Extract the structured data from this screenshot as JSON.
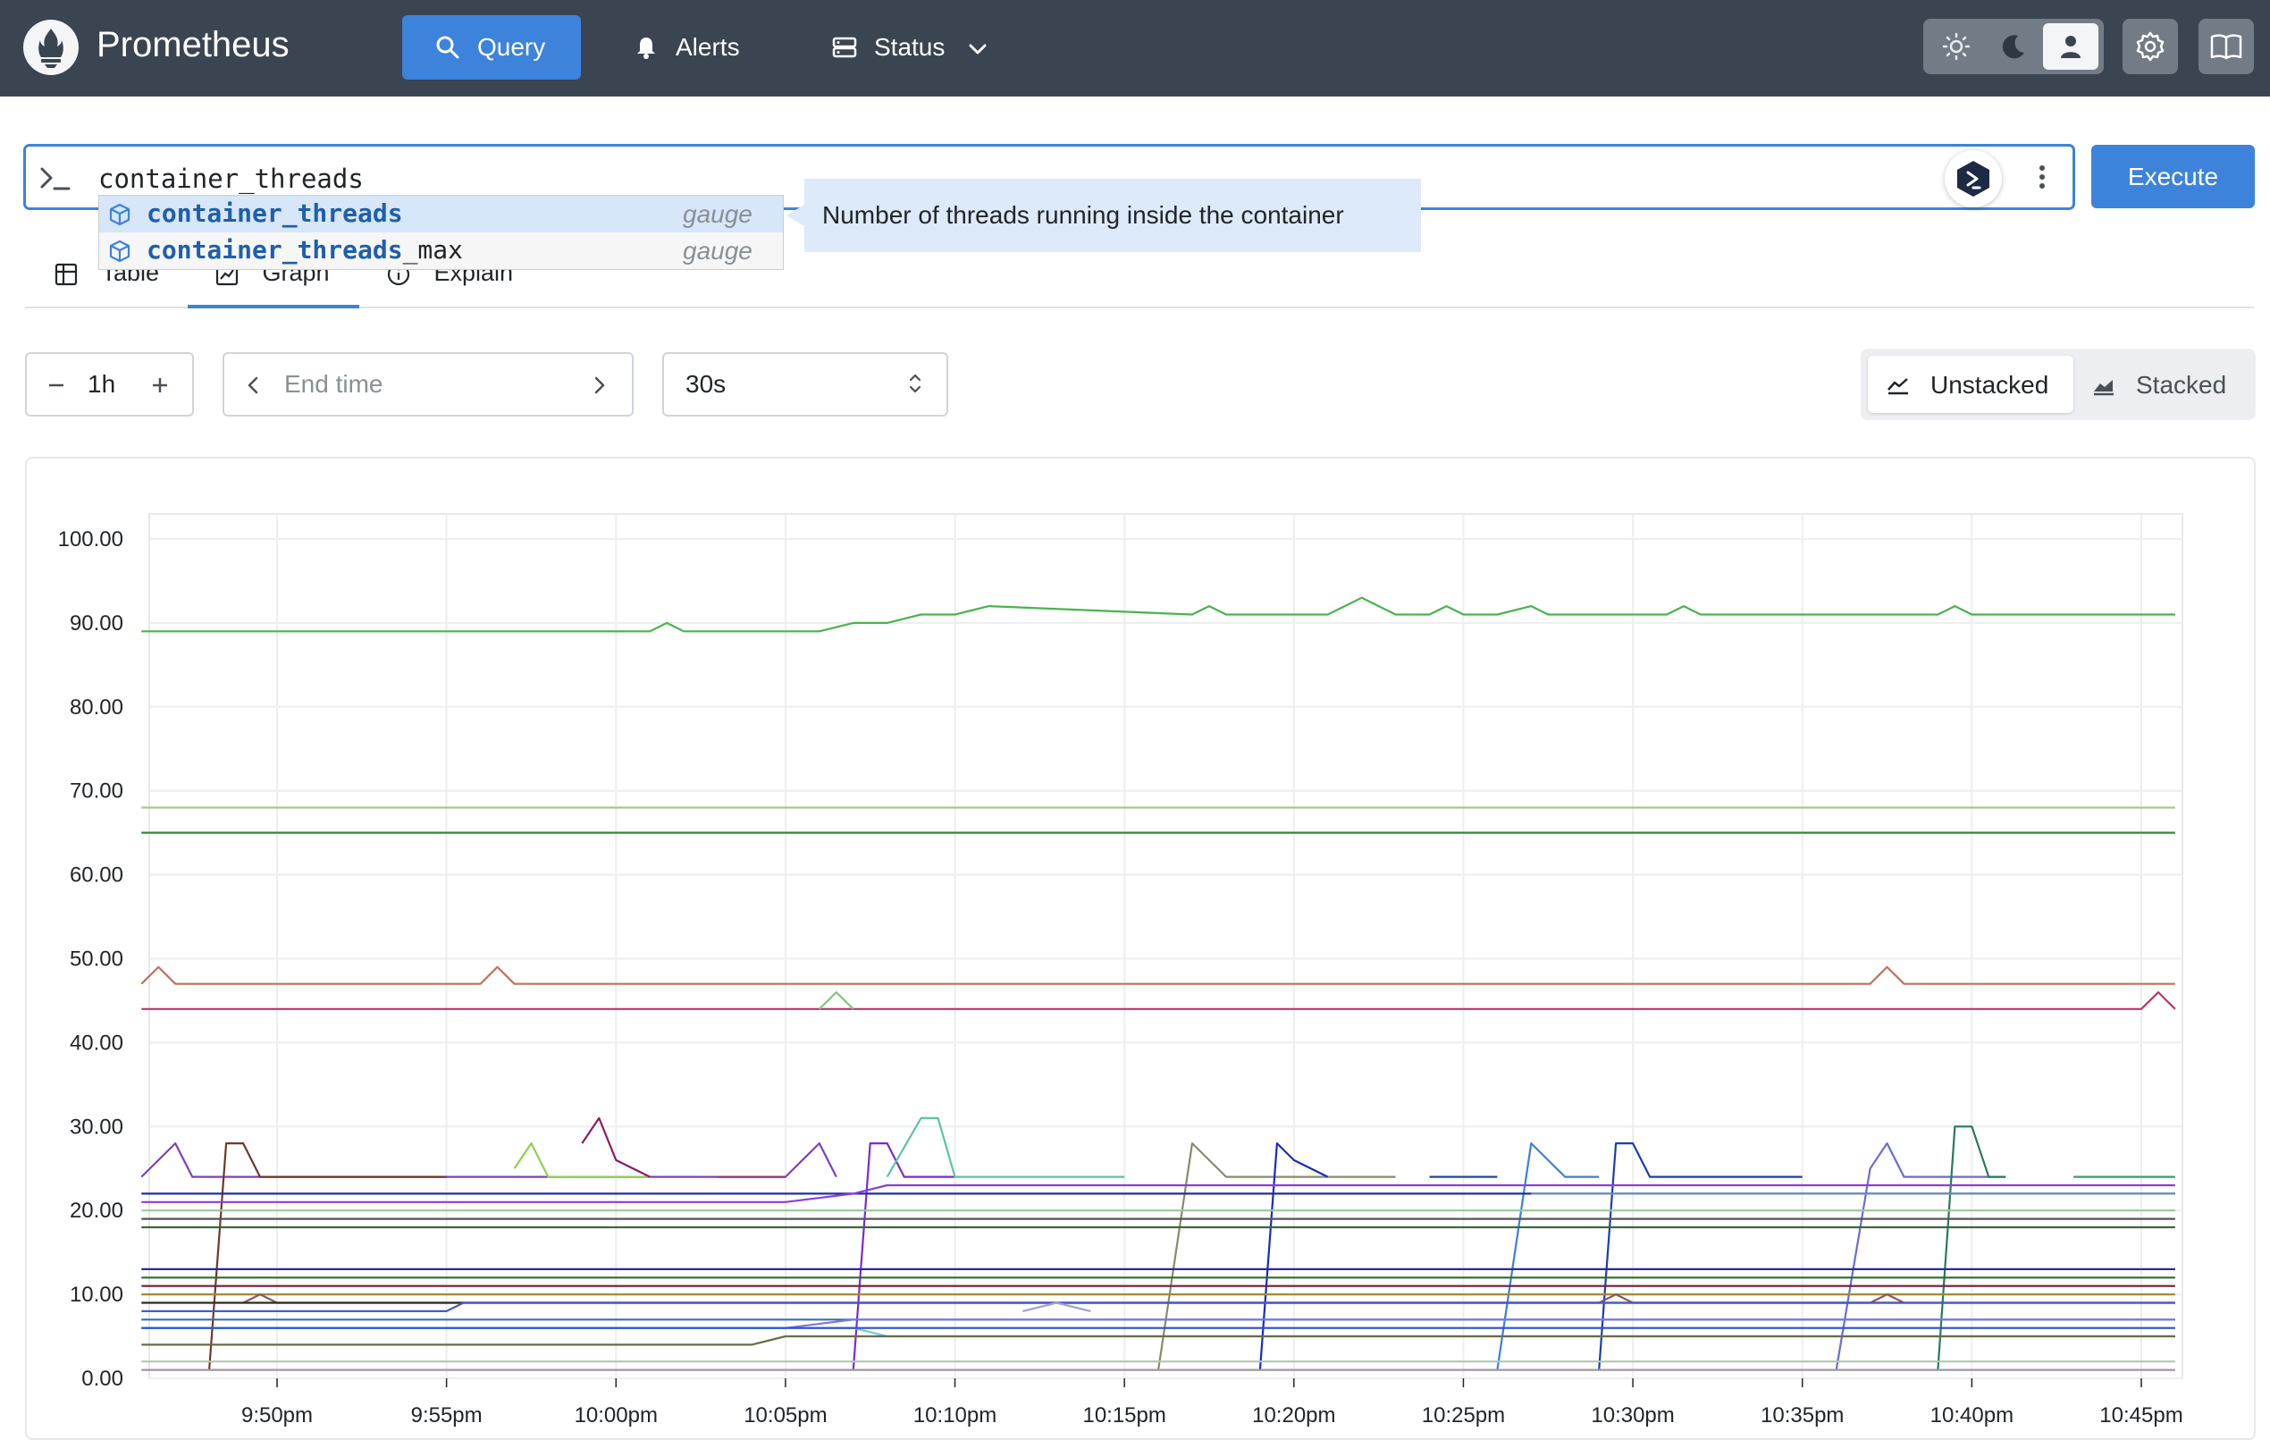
{
  "header": {
    "brand": "Prometheus",
    "nav": [
      {
        "label": "Query",
        "icon": "search-icon",
        "active": true
      },
      {
        "label": "Alerts",
        "icon": "bell-icon",
        "active": false
      },
      {
        "label": "Status",
        "icon": "server-icon",
        "active": false
      }
    ],
    "theme_options": [
      "light-theme-icon",
      "dark-theme-icon",
      "auto-theme-icon"
    ],
    "selected_theme": "auto-theme-icon",
    "accent": "#3d83dc",
    "background": "#3b4451"
  },
  "query": {
    "text": "container_threads",
    "execute_label": "Execute"
  },
  "autocomplete": {
    "items": [
      {
        "match": "container_threads",
        "rest": "",
        "type": "gauge",
        "selected": true
      },
      {
        "match": "container_threads",
        "rest": "_max",
        "type": "gauge",
        "selected": false
      }
    ],
    "info": "Number of threads running inside the container"
  },
  "tabs": [
    {
      "label": "Table",
      "icon": "table-icon"
    },
    {
      "label": "Graph",
      "icon": "graph-icon",
      "active": true
    },
    {
      "label": "Explain",
      "icon": "info-icon"
    }
  ],
  "controls": {
    "range": "1h",
    "end_time_placeholder": "End time",
    "resolution": "30s",
    "stack_options": [
      "Unstacked",
      "Stacked"
    ],
    "selected_stack": "Unstacked"
  },
  "chart_data": {
    "type": "line",
    "ylim": [
      0,
      100
    ],
    "y_ticks": [
      "100.00",
      "90.00",
      "80.00",
      "70.00",
      "60.00",
      "50.00",
      "40.00",
      "30.00",
      "20.00",
      "10.00",
      "0.00"
    ],
    "x_ticks": [
      "9:50pm",
      "9:55pm",
      "10:00pm",
      "10:05pm",
      "10:10pm",
      "10:15pm",
      "10:20pm",
      "10:25pm",
      "10:30pm",
      "10:35pm",
      "10:40pm",
      "10:45pm"
    ],
    "grid": true,
    "series": [
      {
        "color": "#4ab34f",
        "x": [
          "9:46pm",
          "10:01pm",
          "10:01:30pm",
          "10:02pm",
          "10:06pm",
          "10:07pm",
          "10:08pm",
          "10:09pm",
          "10:10pm",
          "10:11pm",
          "10:17pm",
          "10:17:30pm",
          "10:18pm",
          "10:21pm",
          "10:22pm",
          "10:23pm",
          "10:24pm",
          "10:24:30pm",
          "10:25pm",
          "10:26pm",
          "10:27pm",
          "10:27:30pm",
          "10:28pm",
          "10:31pm",
          "10:31:30pm",
          "10:32pm",
          "10:39pm",
          "10:39:30pm",
          "10:40pm",
          "10:46pm"
        ],
        "values": [
          89,
          89,
          90,
          89,
          89,
          90,
          90,
          91,
          91,
          92,
          91,
          92,
          91,
          91,
          93,
          91,
          91,
          92,
          91,
          91,
          92,
          91,
          91,
          91,
          92,
          91,
          91,
          92,
          91,
          91
        ]
      },
      {
        "color": "#a8c68f",
        "x": [
          "9:46pm",
          "10:46pm"
        ],
        "values": [
          68,
          68
        ]
      },
      {
        "color": "#2e8b2e",
        "x": [
          "9:46pm",
          "10:46pm"
        ],
        "values": [
          65,
          65
        ]
      },
      {
        "color": "#c0705a",
        "x": [
          "9:46pm",
          "9:46:30pm",
          "9:47pm",
          "9:56pm",
          "9:56:30pm",
          "9:57pm",
          "10:37pm",
          "10:37:30pm",
          "10:38pm",
          "10:46pm"
        ],
        "values": [
          47,
          49,
          47,
          47,
          49,
          47,
          47,
          49,
          47,
          47
        ]
      },
      {
        "color": "#c2306a",
        "x": [
          "9:46pm",
          "10:45pm",
          "10:45:30pm",
          "10:46pm"
        ],
        "values": [
          44,
          44,
          46,
          44
        ]
      },
      {
        "color": "#7fc97f",
        "x": [
          "10:06pm",
          "10:06:30pm",
          "10:07pm"
        ],
        "values": [
          44,
          46,
          44
        ]
      },
      {
        "color": "#7b3fc4",
        "x": [
          "9:46pm",
          "9:47pm",
          "9:47:30pm",
          "10:05pm",
          "10:06pm",
          "10:06:30pm"
        ],
        "values": [
          24,
          28,
          24,
          24,
          28,
          24
        ]
      },
      {
        "color": "#6b3a2a",
        "x": [
          "9:48pm",
          "9:48:30pm",
          "9:49pm",
          "9:49:30pm",
          "9:55pm"
        ],
        "values": [
          1,
          28,
          28,
          24,
          24
        ]
      },
      {
        "color": "#8fd14f",
        "x": [
          "9:57pm",
          "9:57:30pm",
          "9:58pm",
          "10:01pm"
        ],
        "values": [
          25,
          28,
          24,
          24
        ]
      },
      {
        "color": "#8b1c62",
        "x": [
          "9:59pm",
          "9:59:30pm",
          "10:00pm",
          "10:01pm"
        ],
        "values": [
          28,
          31,
          26,
          24
        ]
      },
      {
        "color": "#9a2f7a",
        "x": [
          "10:03pm",
          "10:05pm"
        ],
        "values": [
          24,
          24
        ]
      },
      {
        "color": "#7a2ad6",
        "x": [
          "10:07pm",
          "10:07:30pm",
          "10:08pm",
          "10:08:30pm",
          "10:10pm"
        ],
        "values": [
          1,
          28,
          28,
          24,
          24
        ]
      },
      {
        "color": "#5cc4a4",
        "x": [
          "10:08pm",
          "10:09pm",
          "10:09:30pm",
          "10:10pm",
          "10:15pm"
        ],
        "values": [
          24,
          31,
          31,
          24,
          24
        ]
      },
      {
        "color": "#8a8a6a",
        "x": [
          "10:16pm",
          "10:17pm",
          "10:17:30pm",
          "10:18pm",
          "10:23pm"
        ],
        "values": [
          1,
          28,
          26,
          24,
          24
        ]
      },
      {
        "color": "#1a2ac4",
        "x": [
          "10:19pm",
          "10:19:30pm",
          "10:20pm",
          "10:21pm"
        ],
        "values": [
          1,
          28,
          26,
          24
        ]
      },
      {
        "color": "#2244aa",
        "x": [
          "10:24pm",
          "10:26pm"
        ],
        "values": [
          24,
          24
        ]
      },
      {
        "color": "#3d7fd9",
        "x": [
          "10:26pm",
          "10:27pm",
          "10:28pm",
          "10:29pm"
        ],
        "values": [
          1,
          28,
          24,
          24
        ]
      },
      {
        "color": "#1a3faa",
        "x": [
          "10:29pm",
          "10:29:30pm",
          "10:30pm",
          "10:30:30pm",
          "10:35pm"
        ],
        "values": [
          1,
          28,
          28,
          24,
          24
        ]
      },
      {
        "color": "#6b6bd9",
        "x": [
          "10:36pm",
          "10:37pm",
          "10:37:30pm",
          "10:38pm",
          "10:41pm"
        ],
        "values": [
          1,
          25,
          28,
          24,
          24
        ]
      },
      {
        "color": "#2a7a5a",
        "x": [
          "10:39pm",
          "10:39:30pm",
          "10:40pm",
          "10:40:30pm",
          "10:41pm"
        ],
        "values": [
          1,
          30,
          30,
          24,
          24
        ]
      },
      {
        "color": "#3c9a6a",
        "x": [
          "10:43pm",
          "10:46pm"
        ],
        "values": [
          24,
          24
        ]
      },
      {
        "color": "#1f2fa0",
        "x": [
          "9:46pm",
          "10:46pm"
        ],
        "values": [
          22,
          22
        ]
      },
      {
        "color": "#8a3fd6",
        "x": [
          "9:46pm",
          "10:05pm",
          "10:07pm",
          "10:08pm",
          "10:46pm"
        ],
        "values": [
          21,
          21,
          22,
          23,
          23
        ]
      },
      {
        "color": "#6a8fc9",
        "x": [
          "10:27pm",
          "10:46pm"
        ],
        "values": [
          22,
          22
        ]
      },
      {
        "color": "#9bc89b",
        "x": [
          "9:46pm",
          "10:46pm"
        ],
        "values": [
          20,
          20
        ]
      },
      {
        "color": "#555555",
        "x": [
          "9:46pm",
          "10:46pm"
        ],
        "values": [
          19,
          19
        ]
      },
      {
        "color": "#3a6a3a",
        "x": [
          "9:46pm",
          "10:46pm"
        ],
        "values": [
          18,
          18
        ]
      },
      {
        "color": "#2a2a9a",
        "x": [
          "9:46pm",
          "10:46pm"
        ],
        "values": [
          13,
          13
        ]
      },
      {
        "color": "#2e6b2e",
        "x": [
          "9:46pm",
          "10:46pm"
        ],
        "values": [
          12,
          12
        ]
      },
      {
        "color": "#6b1f3a",
        "x": [
          "9:46pm",
          "10:46pm"
        ],
        "values": [
          11,
          11
        ]
      },
      {
        "color": "#a08a3a",
        "x": [
          "9:46pm",
          "10:46pm"
        ],
        "values": [
          10,
          10
        ]
      },
      {
        "color": "#8b5a5a",
        "x": [
          "9:49pm",
          "9:49:30pm",
          "9:50pm",
          "10:29pm",
          "10:29:30pm",
          "10:30pm",
          "10:37pm",
          "10:37:30pm",
          "10:38pm"
        ],
        "values": [
          9,
          10,
          9,
          9,
          10,
          9,
          9,
          10,
          9
        ]
      },
      {
        "color": "#2a2a2a",
        "x": [
          "9:46pm",
          "10:46pm"
        ],
        "values": [
          9,
          9
        ]
      },
      {
        "color": "#4a5acc",
        "x": [
          "9:46pm",
          "9:55pm",
          "9:55:30pm",
          "10:46pm"
        ],
        "values": [
          8,
          8,
          9,
          9
        ]
      },
      {
        "color": "#a0a0d8",
        "x": [
          "10:12pm",
          "10:13pm",
          "10:14pm"
        ],
        "values": [
          8,
          9,
          8
        ]
      },
      {
        "color": "#3f6bb5",
        "x": [
          "9:46pm",
          "10:46pm"
        ],
        "values": [
          7,
          7
        ]
      },
      {
        "color": "#7a7ad9",
        "x": [
          "9:46pm",
          "10:05pm",
          "10:07pm",
          "10:46pm"
        ],
        "values": [
          6,
          6,
          7,
          7
        ]
      },
      {
        "color": "#6fcfcf",
        "x": [
          "9:46pm",
          "10:07pm",
          "10:08pm",
          "10:46pm"
        ],
        "values": [
          6,
          6,
          5,
          5
        ]
      },
      {
        "color": "#6b6b4a",
        "x": [
          "9:46pm",
          "10:04pm",
          "10:05pm",
          "10:46pm"
        ],
        "values": [
          4,
          4,
          5,
          5
        ]
      },
      {
        "color": "#2a4fd6",
        "x": [
          "9:46pm",
          "10:46pm"
        ],
        "values": [
          6,
          6
        ]
      },
      {
        "color": "#b0c8b0",
        "x": [
          "9:46pm",
          "10:46pm"
        ],
        "values": [
          2,
          2
        ]
      },
      {
        "color": "#9a9a9a",
        "x": [
          "9:46pm",
          "10:46pm"
        ],
        "values": [
          1,
          1
        ]
      }
    ]
  }
}
